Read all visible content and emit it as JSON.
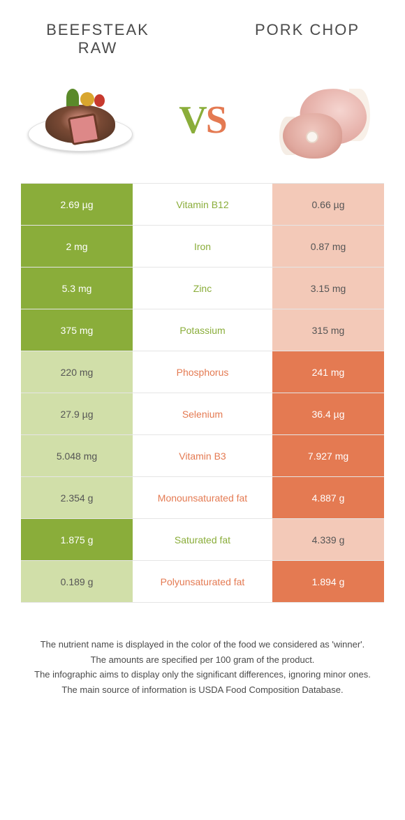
{
  "header": {
    "left_title_line1": "BEEFSTEAK",
    "left_title_line2": "RAW",
    "right_title": "PORK CHOP",
    "vs_v": "V",
    "vs_s": "S"
  },
  "colors": {
    "left_winner": "#8aad3a",
    "left_loser": "#d1dfa9",
    "right_winner": "#e47a52",
    "right_loser": "#f3c9b8",
    "background": "#ffffff"
  },
  "table": {
    "rows": [
      {
        "nutrient": "Vitamin B12",
        "left": "2.69 µg",
        "right": "0.66 µg",
        "winner": "left"
      },
      {
        "nutrient": "Iron",
        "left": "2 mg",
        "right": "0.87 mg",
        "winner": "left"
      },
      {
        "nutrient": "Zinc",
        "left": "5.3 mg",
        "right": "3.15 mg",
        "winner": "left"
      },
      {
        "nutrient": "Potassium",
        "left": "375 mg",
        "right": "315 mg",
        "winner": "left"
      },
      {
        "nutrient": "Phosphorus",
        "left": "220 mg",
        "right": "241 mg",
        "winner": "right"
      },
      {
        "nutrient": "Selenium",
        "left": "27.9 µg",
        "right": "36.4 µg",
        "winner": "right"
      },
      {
        "nutrient": "Vitamin B3",
        "left": "5.048 mg",
        "right": "7.927 mg",
        "winner": "right"
      },
      {
        "nutrient": "Monounsaturated fat",
        "left": "2.354 g",
        "right": "4.887 g",
        "winner": "right"
      },
      {
        "nutrient": "Saturated fat",
        "left": "1.875 g",
        "right": "4.339 g",
        "winner": "left"
      },
      {
        "nutrient": "Polyunsaturated fat",
        "left": "0.189 g",
        "right": "1.894 g",
        "winner": "right"
      }
    ]
  },
  "footer": {
    "line1": "The nutrient name is displayed in the color of the food we considered as 'winner'.",
    "line2": "The amounts are specified per 100 gram of the product.",
    "line3": "The infographic aims to display only the significant differences, ignoring minor ones.",
    "line4": "The main source of information is USDA Food Composition Database."
  }
}
